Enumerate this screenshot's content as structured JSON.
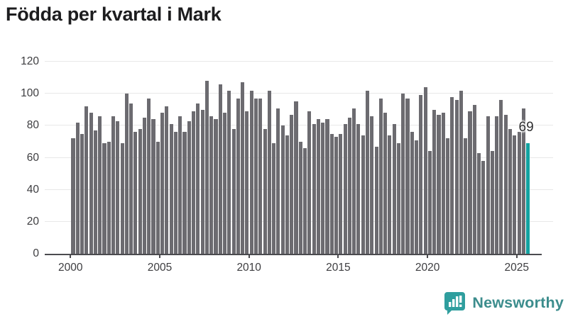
{
  "title": "Födda per kvartal i Mark",
  "chart_data": {
    "type": "bar",
    "x_start": "2000-Q1",
    "x_end": "2025-Q3",
    "period": "quarterly",
    "values": [
      72,
      82,
      75,
      92,
      88,
      77,
      86,
      69,
      70,
      86,
      83,
      69,
      100,
      94,
      76,
      78,
      85,
      97,
      84,
      70,
      88,
      92,
      81,
      76,
      86,
      76,
      83,
      89,
      94,
      90,
      108,
      86,
      84,
      106,
      88,
      102,
      78,
      97,
      107,
      89,
      102,
      97,
      97,
      78,
      102,
      69,
      91,
      80,
      74,
      87,
      95,
      70,
      66,
      89,
      81,
      84,
      82,
      84,
      75,
      73,
      75,
      81,
      85,
      91,
      81,
      74,
      102,
      86,
      67,
      97,
      88,
      74,
      81,
      69,
      100,
      97,
      76,
      71,
      99,
      104,
      64,
      90,
      87,
      88,
      72,
      98,
      96,
      102,
      72,
      89,
      93,
      63,
      58,
      86,
      64,
      86,
      96,
      87,
      78,
      74,
      76,
      91,
      69
    ],
    "x_tick_labels": [
      "2000",
      "2005",
      "2010",
      "2015",
      "2020",
      "2025"
    ],
    "y_ticks": [
      0,
      20,
      40,
      60,
      80,
      100,
      120
    ],
    "ylim": [
      0,
      120
    ],
    "grid": "horizontal",
    "legend": "none",
    "bar_color": "#6c6b70",
    "highlight_color": "#13a3a1",
    "highlight_index": 102,
    "annotation": {
      "text": "69",
      "index": 102
    }
  },
  "branding": {
    "logo_text": "Newsworthy",
    "logo_icon": "bar-chart-speech-bubble-icon",
    "logo_color": "#3c8d8d",
    "logo_icon_color": "#2f9e9e"
  }
}
